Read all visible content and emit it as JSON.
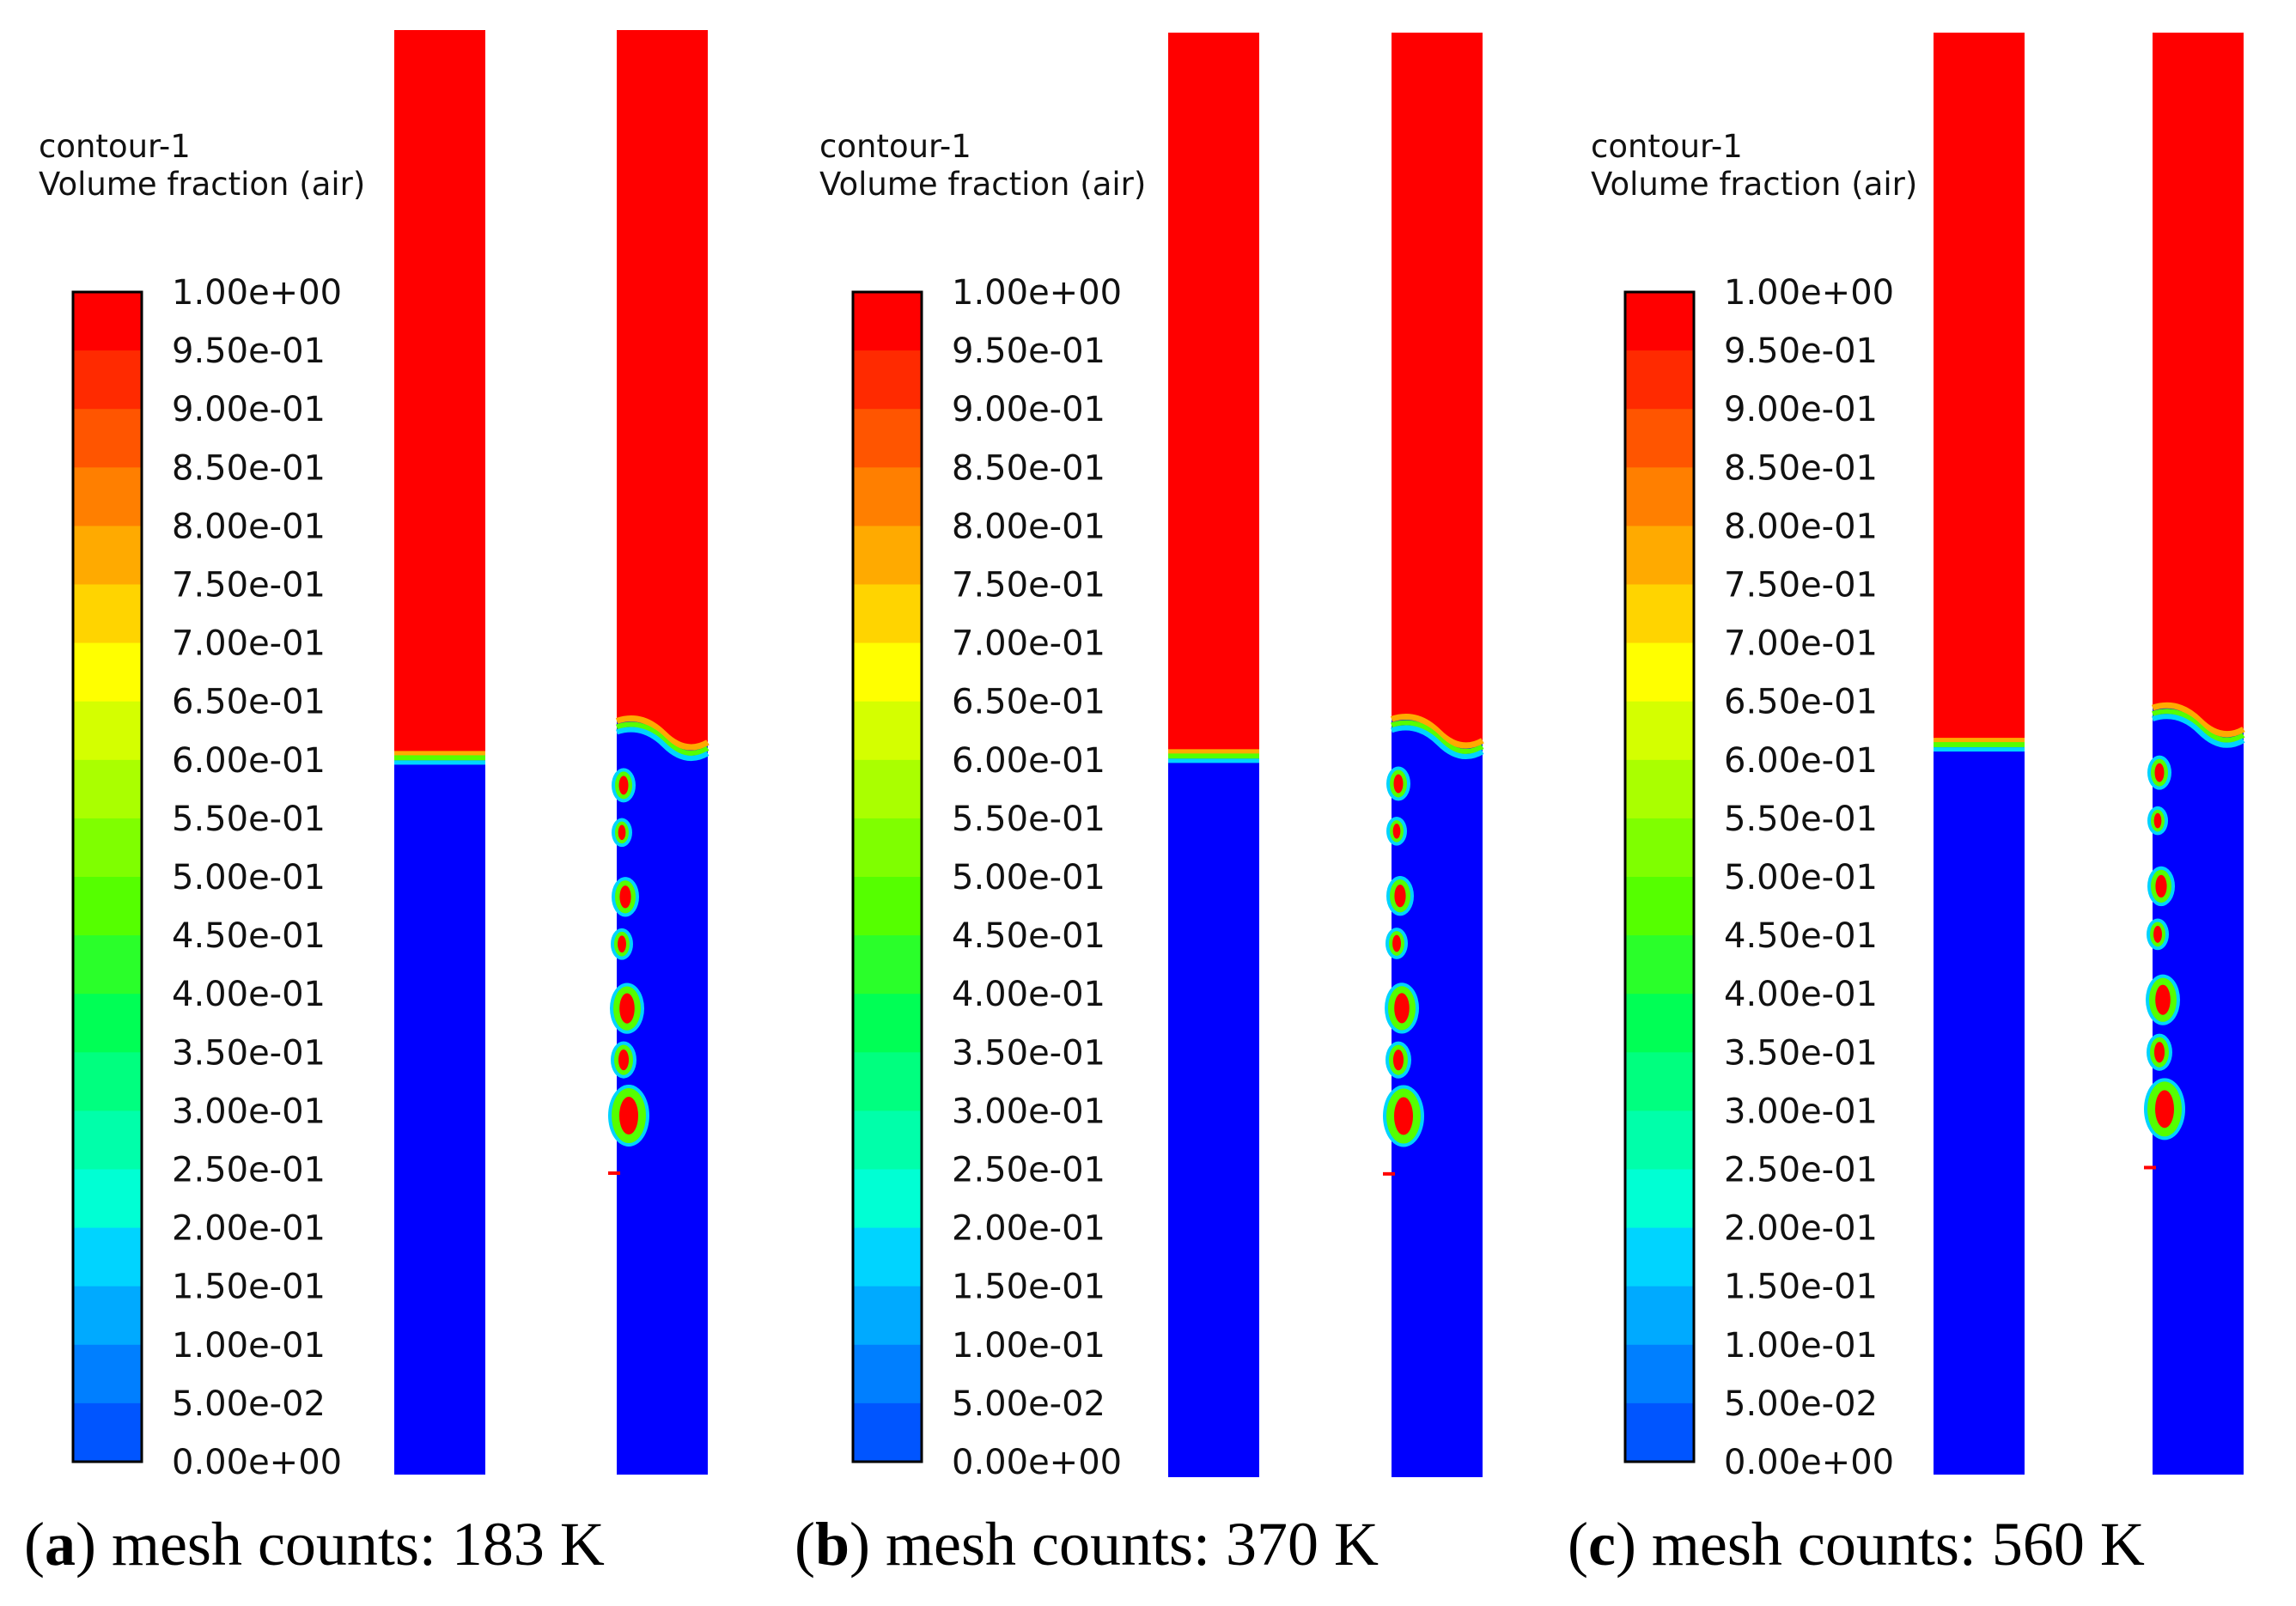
{
  "panels": [
    {
      "id": "a",
      "legend_title": "contour-1",
      "legend_subtitle": "Volume fraction (air)",
      "caption_letter": "a",
      "caption_text": "mesh counts: 183 K",
      "interface_fraction": 0.505
    },
    {
      "id": "b",
      "legend_title": "contour-1",
      "legend_subtitle": "Volume fraction (air)",
      "caption_letter": "b",
      "caption_text": "mesh counts: 370 K",
      "interface_fraction": 0.502
    },
    {
      "id": "c",
      "legend_title": "contour-1",
      "legend_subtitle": "Volume fraction (air)",
      "caption_letter": "c",
      "caption_text": "mesh counts: 560 K",
      "interface_fraction": 0.495
    }
  ],
  "colorbar_ticks": [
    "1.00e+00",
    "9.50e-01",
    "9.00e-01",
    "8.50e-01",
    "8.00e-01",
    "7.50e-01",
    "7.00e-01",
    "6.50e-01",
    "6.00e-01",
    "5.50e-01",
    "5.00e-01",
    "4.50e-01",
    "4.00e-01",
    "3.50e-01",
    "3.00e-01",
    "2.50e-01",
    "2.00e-01",
    "1.50e-01",
    "1.00e-01",
    "5.00e-02",
    "0.00e+00"
  ],
  "colorbar_colors": [
    "#ff0000",
    "#ff2a00",
    "#ff5500",
    "#ff7f00",
    "#ffaa00",
    "#ffd400",
    "#ffff00",
    "#d4ff00",
    "#aaff00",
    "#7fff00",
    "#55ff00",
    "#2aff2a",
    "#00ff55",
    "#00ff7f",
    "#00ffaa",
    "#00ffd4",
    "#00d4ff",
    "#00aaff",
    "#007fff",
    "#0055ff"
  ],
  "colors": {
    "air": "#ff0000",
    "water": "#0000ff",
    "interface_mid": "#55ff00",
    "interface_warm": "#ffaa00",
    "interface_cool": "#00d4ff"
  }
}
